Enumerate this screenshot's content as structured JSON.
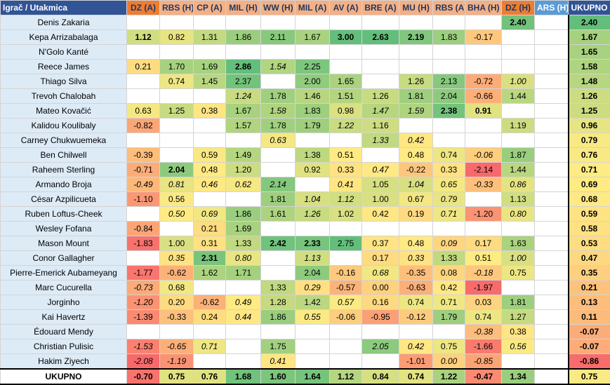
{
  "table": {
    "corner_label": "Igrač / Utakmica",
    "total_label": "UKUPNO",
    "columns": [
      {
        "label": "DZ (A)",
        "style": "orange"
      },
      {
        "label": "RBS (H)",
        "style": "peach"
      },
      {
        "label": "CP (A)",
        "style": "peach"
      },
      {
        "label": "MIL (H)",
        "style": "peach"
      },
      {
        "label": "WW (H)",
        "style": "peach"
      },
      {
        "label": "MIL (A)",
        "style": "peach"
      },
      {
        "label": "AV (A)",
        "style": "peach"
      },
      {
        "label": "BRE (A)",
        "style": "peach"
      },
      {
        "label": "MU (H)",
        "style": "peach"
      },
      {
        "label": "RBS (A)",
        "style": "peach"
      },
      {
        "label": "BHA (H)",
        "style": "peach"
      },
      {
        "label": "DZ (H)",
        "style": "orange"
      },
      {
        "label": "ARS (H)",
        "style": "home"
      }
    ],
    "rows": [
      {
        "player": "Denis Zakaria",
        "cells": [
          "",
          "",
          "",
          "",
          "",
          "",
          "",
          "",
          "",
          "",
          "",
          "2.40",
          ""
        ],
        "fmt": [
          "",
          "",
          "",
          "",
          "",
          "",
          "",
          "",
          "",
          "",
          "",
          "b",
          ""
        ],
        "total": "2.40"
      },
      {
        "player": "Kepa Arrizabalaga",
        "cells": [
          "1.12",
          "0.82",
          "1.31",
          "1.86",
          "2.11",
          "1.67",
          "3.00",
          "2.63",
          "2.19",
          "1.83",
          "-0.17",
          "",
          ""
        ],
        "fmt": [
          "b",
          "",
          "",
          "",
          "",
          "",
          "b",
          "b",
          "b",
          "",
          "",
          "",
          ""
        ],
        "total": "1.67"
      },
      {
        "player": "N'Golo Kanté",
        "cells": [
          "",
          "",
          "",
          "",
          "",
          "",
          "",
          "",
          "",
          "",
          "",
          "",
          ""
        ],
        "fmt": [
          "",
          "",
          "",
          "",
          "",
          "",
          "",
          "",
          "",
          "",
          "",
          "",
          ""
        ],
        "total": "1.65"
      },
      {
        "player": "Reece James",
        "cells": [
          "0.21",
          "1.70",
          "1.69",
          "2.86",
          "1.54",
          "2.25",
          "",
          "",
          "",
          "",
          "",
          "",
          ""
        ],
        "fmt": [
          "",
          "",
          "",
          "b",
          "i",
          "",
          "",
          "",
          "",
          "",
          "",
          "",
          ""
        ],
        "total": "1.58"
      },
      {
        "player": "Thiago Silva",
        "cells": [
          "",
          "0.74",
          "1.45",
          "2.37",
          "",
          "2.00",
          "1.65",
          "",
          "1.26",
          "2.13",
          "-0.72",
          "1.00",
          ""
        ],
        "fmt": [
          "",
          "",
          "",
          "",
          "",
          "",
          "",
          "",
          "",
          "",
          "",
          "i",
          ""
        ],
        "total": "1.48"
      },
      {
        "player": "Trevoh Chalobah",
        "cells": [
          "",
          "",
          "",
          "1.24",
          "1.78",
          "1.46",
          "1.51",
          "1.26",
          "1.81",
          "2.04",
          "-0.66",
          "1.44",
          ""
        ],
        "fmt": [
          "",
          "",
          "",
          "i",
          "",
          "",
          "",
          "",
          "",
          "",
          "",
          "",
          ""
        ],
        "total": "1.26"
      },
      {
        "player": "Mateo Kovačić",
        "cells": [
          "0.63",
          "1.25",
          "0.38",
          "1.67",
          "1.58",
          "1.83",
          "0.98",
          "1.47",
          "1.59",
          "2.38",
          "0.91",
          "",
          ""
        ],
        "fmt": [
          "",
          "",
          "",
          "",
          "i",
          "",
          "",
          "i",
          "i",
          "b",
          "b",
          "",
          ""
        ],
        "total": "1.25"
      },
      {
        "player": "Kalidou Koulibaly",
        "cells": [
          "-0.82",
          "",
          "",
          "1.57",
          "1.78",
          "1.79",
          "1.22",
          "1.16",
          "",
          "",
          "",
          "1.19",
          ""
        ],
        "fmt": [
          "",
          "",
          "",
          "",
          "",
          "",
          "i",
          "",
          "",
          "",
          "",
          "",
          ""
        ],
        "total": "0.96"
      },
      {
        "player": "Carney Chukwuemeka",
        "cells": [
          "",
          "",
          "",
          "",
          "0.63",
          "",
          "",
          "1.33",
          "0.42",
          "",
          "",
          "",
          ""
        ],
        "fmt": [
          "",
          "",
          "",
          "",
          "i",
          "",
          "",
          "i",
          "i",
          "",
          "",
          "",
          ""
        ],
        "total": "0.79"
      },
      {
        "player": "Ben Chilwell",
        "cells": [
          "-0.39",
          "",
          "0.59",
          "1.49",
          "",
          "1.38",
          "0.51",
          "",
          "0.48",
          "0.74",
          "-0.06",
          "1.87",
          ""
        ],
        "fmt": [
          "",
          "",
          "",
          "",
          "",
          "",
          "",
          "",
          "",
          "",
          "i",
          "",
          ""
        ],
        "total": "0.76"
      },
      {
        "player": "Raheem Sterling",
        "cells": [
          "-0.71",
          "2.04",
          "0.48",
          "1.20",
          "",
          "0.92",
          "0.33",
          "0.47",
          "-0.22",
          "0.33",
          "-2.14",
          "1.44",
          ""
        ],
        "fmt": [
          "",
          "b",
          "",
          "",
          "",
          "",
          "",
          "i",
          "",
          "",
          "",
          "",
          ""
        ],
        "total": "0.71"
      },
      {
        "player": "Armando Broja",
        "cells": [
          "-0.49",
          "0.81",
          "0.46",
          "0.62",
          "2.14",
          "",
          "0.41",
          "1.05",
          "1.04",
          "0.65",
          "-0.33",
          "0.86",
          ""
        ],
        "fmt": [
          "i",
          "i",
          "i",
          "i",
          "i",
          "",
          "i",
          "",
          "i",
          "i",
          "i",
          "i",
          ""
        ],
        "total": "0.69"
      },
      {
        "player": "César Azpilicueta",
        "cells": [
          "-1.10",
          "0.56",
          "",
          "",
          "1.81",
          "1.04",
          "1.12",
          "1.00",
          "0.67",
          "0.79",
          "",
          "1.13",
          ""
        ],
        "fmt": [
          "",
          "",
          "",
          "",
          "",
          "i",
          "i",
          "",
          "",
          "i",
          "",
          "",
          ""
        ],
        "total": "0.68"
      },
      {
        "player": "Ruben Loftus-Cheek",
        "cells": [
          "",
          "0.50",
          "0.69",
          "1.86",
          "1.61",
          "1.26",
          "1.02",
          "0.42",
          "0.19",
          "0.71",
          "-1.20",
          "0.80",
          ""
        ],
        "fmt": [
          "",
          "i",
          "i",
          "",
          "",
          "i",
          "",
          "",
          "",
          "i",
          "",
          "i",
          ""
        ],
        "total": "0.59"
      },
      {
        "player": "Wesley Fofana",
        "cells": [
          "-0.84",
          "",
          "0.21",
          "1.69",
          "",
          "",
          "",
          "",
          "",
          "",
          "",
          "",
          ""
        ],
        "fmt": [
          "",
          "",
          "",
          "",
          "",
          "",
          "",
          "",
          "",
          "",
          "",
          "",
          ""
        ],
        "total": "0.58"
      },
      {
        "player": "Mason Mount",
        "cells": [
          "-1.83",
          "1.00",
          "0.31",
          "1.33",
          "2.42",
          "2.33",
          "2.75",
          "0.37",
          "0.48",
          "0.09",
          "0.17",
          "1.63",
          ""
        ],
        "fmt": [
          "",
          "",
          "",
          "",
          "b",
          "b",
          "",
          "",
          "",
          "i",
          "",
          "",
          ""
        ],
        "total": "0.53"
      },
      {
        "player": "Conor Gallagher",
        "cells": [
          "",
          "0.35",
          "2.31",
          "0.80",
          "",
          "1.13",
          "",
          "0.17",
          "0.33",
          "1.33",
          "0.51",
          "1.00",
          ""
        ],
        "fmt": [
          "",
          "i",
          "b",
          "i",
          "",
          "i",
          "",
          "",
          "i",
          "",
          "",
          "i",
          ""
        ],
        "total": "0.47"
      },
      {
        "player": "Pierre-Emerick Aubameyang",
        "cells": [
          "-1.77",
          "-0.62",
          "1.62",
          "1.71",
          "",
          "2.04",
          "-0.16",
          "0.68",
          "-0.35",
          "0.08",
          "-0.18",
          "0.75",
          ""
        ],
        "fmt": [
          "",
          "",
          "",
          "",
          "",
          "",
          "",
          "i",
          "",
          "",
          "i",
          "",
          ""
        ],
        "total": "0.35"
      },
      {
        "player": "Marc Cucurella",
        "cells": [
          "-0.73",
          "0.68",
          "",
          "",
          "1.33",
          "0.29",
          "-0.57",
          "0.00",
          "-0.63",
          "0.42",
          "-1.97",
          "",
          ""
        ],
        "fmt": [
          "i",
          "",
          "",
          "",
          "",
          "i",
          "",
          "",
          "",
          "",
          "",
          "",
          ""
        ],
        "total": "0.21"
      },
      {
        "player": "Jorginho",
        "cells": [
          "-1.20",
          "0.20",
          "-0.62",
          "0.49",
          "1.28",
          "1.42",
          "0.57",
          "0.16",
          "0.74",
          "0.71",
          "0.03",
          "1.81",
          ""
        ],
        "fmt": [
          "i",
          "",
          "",
          "i",
          "",
          "",
          "i",
          "",
          "",
          "",
          "",
          "",
          ""
        ],
        "total": "0.13"
      },
      {
        "player": "Kai Havertz",
        "cells": [
          "-1.39",
          "-0.33",
          "0.24",
          "0.44",
          "1.86",
          "0.55",
          "-0.06",
          "-0.95",
          "-0.12",
          "1.79",
          "0.74",
          "1.27",
          ""
        ],
        "fmt": [
          "",
          "",
          "",
          "i",
          "",
          "i",
          "",
          "",
          "",
          "",
          "",
          "",
          ""
        ],
        "total": "0.11"
      },
      {
        "player": "Édouard Mendy",
        "cells": [
          "",
          "",
          "",
          "",
          "",
          "",
          "",
          "",
          "",
          "",
          "-0.38",
          "0.38",
          ""
        ],
        "fmt": [
          "",
          "",
          "",
          "",
          "",
          "",
          "",
          "",
          "",
          "",
          "i",
          "",
          ""
        ],
        "total": "-0.07"
      },
      {
        "player": "Christian Pulisic",
        "cells": [
          "-1.53",
          "-0.65",
          "0.71",
          "",
          "1.75",
          "",
          "",
          "2.05",
          "0.42",
          "0.75",
          "-1.66",
          "0.56",
          ""
        ],
        "fmt": [
          "i",
          "i",
          "i",
          "",
          "",
          "",
          "",
          "i",
          "i",
          "",
          "",
          "i",
          ""
        ],
        "total": "-0.07"
      },
      {
        "player": "Hakim Ziyech",
        "cells": [
          "-2.08",
          "-1.19",
          "",
          "",
          "0.41",
          "",
          "",
          "",
          "-1.01",
          "0.00",
          "-0.85",
          "",
          ""
        ],
        "fmt": [
          "i",
          "i",
          "",
          "",
          "i",
          "",
          "",
          "",
          "",
          "i",
          "i",
          "",
          ""
        ],
        "total": "-0.86"
      }
    ],
    "footer": {
      "label": "UKUPNO",
      "cells": [
        "-0.70",
        "0.75",
        "0.76",
        "1.68",
        "1.60",
        "1.64",
        "1.12",
        "0.84",
        "0.74",
        "1.22",
        "-0.47",
        "1.34",
        ""
      ],
      "total": "0.75"
    }
  }
}
